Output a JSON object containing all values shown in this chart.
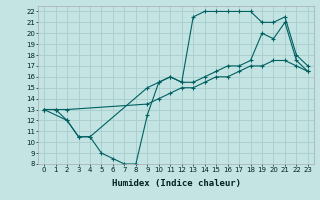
{
  "xlabel": "Humidex (Indice chaleur)",
  "bg_color": "#c4e4e4",
  "grid_color": "#a8cccc",
  "line_color": "#006060",
  "xlim": [
    -0.5,
    23.5
  ],
  "ylim": [
    8,
    22.5
  ],
  "xticks": [
    0,
    1,
    2,
    3,
    4,
    5,
    6,
    7,
    8,
    9,
    10,
    11,
    12,
    13,
    14,
    15,
    16,
    17,
    18,
    19,
    20,
    21,
    22,
    23
  ],
  "yticks": [
    8,
    9,
    10,
    11,
    12,
    13,
    14,
    15,
    16,
    17,
    18,
    19,
    20,
    21,
    22
  ],
  "line1_x": [
    0,
    1,
    2,
    3,
    4,
    5,
    6,
    7,
    8,
    9,
    10,
    11,
    12,
    13,
    14,
    15,
    16,
    17,
    18,
    19,
    20,
    21,
    22,
    23
  ],
  "line1_y": [
    13,
    13,
    12,
    10.5,
    10.5,
    9,
    8.5,
    8,
    8,
    12.5,
    15.5,
    16,
    15.5,
    21.5,
    22,
    22,
    22,
    22,
    22,
    21,
    21,
    21.5,
    18,
    17
  ],
  "line2_x": [
    0,
    2,
    3,
    4,
    9,
    10,
    11,
    12,
    13,
    14,
    15,
    16,
    17,
    18,
    19,
    20,
    21,
    22,
    23
  ],
  "line2_y": [
    13,
    12,
    10.5,
    10.5,
    15,
    15.5,
    16,
    15.5,
    15.5,
    16,
    16.5,
    17,
    17,
    17.5,
    20,
    19.5,
    21,
    17.5,
    16.5
  ],
  "line3_x": [
    0,
    1,
    2,
    9,
    10,
    11,
    12,
    13,
    14,
    15,
    16,
    17,
    18,
    19,
    20,
    21,
    22,
    23
  ],
  "line3_y": [
    13,
    13,
    13,
    13.5,
    14,
    14.5,
    15,
    15,
    15.5,
    16,
    16,
    16.5,
    17,
    17,
    17.5,
    17.5,
    17,
    16.5
  ]
}
